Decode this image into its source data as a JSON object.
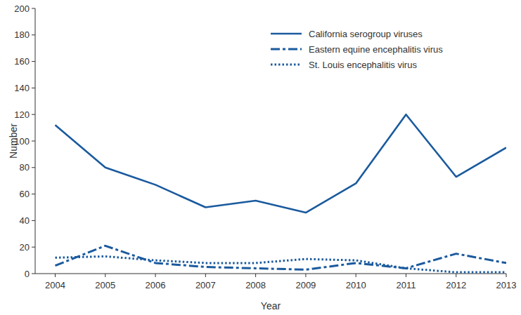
{
  "chart_data": {
    "type": "line",
    "x_label": "Year",
    "y_label": "Number",
    "x": [
      2004,
      2005,
      2006,
      2007,
      2008,
      2009,
      2010,
      2011,
      2012,
      2013
    ],
    "xlim": [
      2003.6,
      2013
    ],
    "xticks": [
      2004,
      2005,
      2006,
      2007,
      2008,
      2009,
      2010,
      2011,
      2012,
      2013
    ],
    "ylim": [
      0,
      200
    ],
    "yticks": [
      0,
      20,
      40,
      60,
      80,
      100,
      120,
      140,
      160,
      180,
      200
    ],
    "grid": false,
    "legend": "top-right",
    "series": [
      {
        "name": "California serogroup viruses",
        "color": "#1a5a9e",
        "line_style": "solid",
        "values": [
          112,
          80,
          67,
          50,
          55,
          46,
          68,
          120,
          73,
          95
        ]
      },
      {
        "name": "Eastern equine encephalitis virus",
        "color": "#1a5a9e",
        "line_style": "dashdot",
        "values": [
          6,
          21,
          8,
          5,
          4,
          3,
          8,
          4,
          15,
          8
        ]
      },
      {
        "name": "St. Louis encephalitis virus",
        "color": "#1a5a9e",
        "line_style": "dotted",
        "values": [
          12,
          13,
          10,
          8,
          8,
          11,
          10,
          4,
          1,
          1
        ]
      }
    ]
  }
}
